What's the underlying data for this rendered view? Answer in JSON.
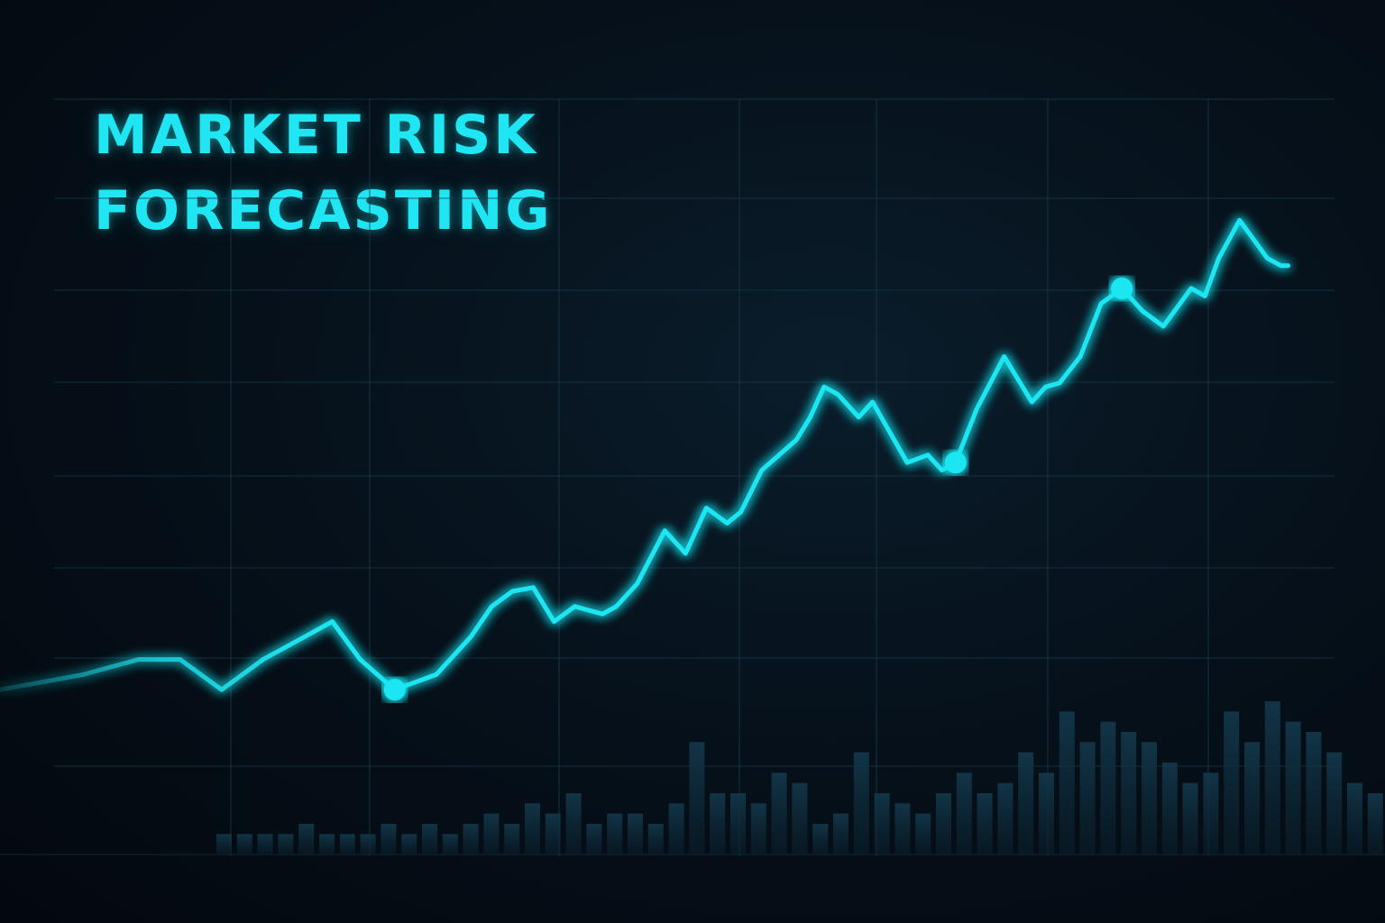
{
  "title_line_1": "MARKET RISK",
  "title_line_2": "FORECASTING",
  "colors": {
    "background": "#040c14",
    "line": "#1fe6f2",
    "grid": "#1a3a4c",
    "bars": "#0f2a3a"
  },
  "chart_data": {
    "type": "line",
    "title": "MARKET RISK FORECASTING",
    "xlabel": "",
    "ylabel": "",
    "grid": true,
    "legend": "none",
    "xlim": [
      0,
      100
    ],
    "ylim": [
      0,
      100
    ],
    "series": [
      {
        "values": [
          [
            0,
            22
          ],
          [
            3,
            23
          ],
          [
            6,
            24
          ],
          [
            10,
            26
          ],
          [
            13,
            26
          ],
          [
            16,
            22
          ],
          [
            19,
            26
          ],
          [
            21,
            28
          ],
          [
            24,
            31
          ],
          [
            26,
            26
          ],
          [
            28.5,
            22
          ],
          [
            31.5,
            24
          ],
          [
            34,
            29
          ],
          [
            35.5,
            33
          ],
          [
            37,
            35
          ],
          [
            38.5,
            35.5
          ],
          [
            40,
            31
          ],
          [
            41.5,
            33
          ],
          [
            43.5,
            32
          ],
          [
            44.5,
            33
          ],
          [
            46,
            36
          ],
          [
            48,
            43
          ],
          [
            49.5,
            40
          ],
          [
            51,
            46
          ],
          [
            52.5,
            44
          ],
          [
            53.5,
            45.5
          ],
          [
            55,
            51
          ],
          [
            57.5,
            55
          ],
          [
            58.5,
            58
          ],
          [
            59.5,
            62
          ],
          [
            60.5,
            61
          ],
          [
            62,
            58
          ],
          [
            63,
            60
          ],
          [
            65.5,
            52
          ],
          [
            67,
            53
          ],
          [
            68,
            51
          ],
          [
            69,
            52
          ],
          [
            70.5,
            59
          ],
          [
            72.5,
            66
          ],
          [
            74.5,
            60
          ],
          [
            75.5,
            62
          ],
          [
            76.5,
            62.5
          ],
          [
            78,
            66
          ],
          [
            79.5,
            73
          ],
          [
            81,
            75
          ],
          [
            82.5,
            72
          ],
          [
            84,
            70
          ],
          [
            86,
            75
          ],
          [
            87,
            74
          ],
          [
            88,
            79
          ],
          [
            89.5,
            84
          ],
          [
            91.5,
            79
          ],
          [
            92.5,
            78
          ],
          [
            93,
            78
          ]
        ]
      }
    ],
    "highlighted_points": [
      [
        28.5,
        22
      ],
      [
        69,
        52
      ],
      [
        81,
        75
      ]
    ],
    "volume_bars": [
      2,
      2,
      2,
      2,
      3,
      2,
      2,
      2,
      3,
      2,
      3,
      2,
      3,
      4,
      3,
      5,
      4,
      6,
      3,
      4,
      4,
      3,
      5,
      11,
      6,
      6,
      5,
      8,
      7,
      3,
      4,
      10,
      6,
      5,
      4,
      6,
      8,
      6,
      7,
      10,
      8,
      14,
      11,
      13,
      12,
      11,
      9,
      7,
      8,
      14,
      11,
      15,
      13,
      12,
      10,
      7,
      6,
      8
    ]
  }
}
